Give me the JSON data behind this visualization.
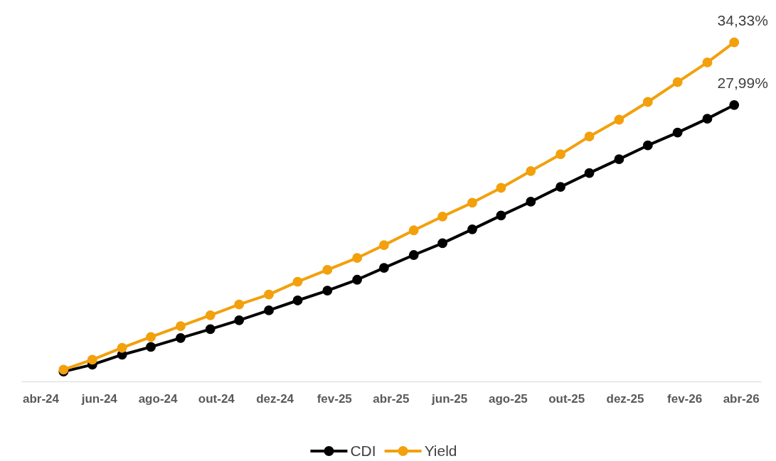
{
  "chart_data": {
    "type": "line",
    "x": [
      "2024-04-25",
      "2024-05-25",
      "2024-06-25",
      "2024-07-25",
      "2024-08-25",
      "2024-09-25",
      "2024-10-25",
      "2024-11-25",
      "2024-12-25",
      "2025-01-25",
      "2025-02-25",
      "2025-03-25",
      "2025-04-25",
      "2025-05-25",
      "2025-06-25",
      "2025-07-25",
      "2025-08-25",
      "2025-09-25",
      "2025-10-25",
      "2025-11-25",
      "2025-12-25",
      "2026-01-25",
      "2026-02-25",
      "2026-03-25"
    ],
    "xlim": [
      "2024-03-12",
      "2026-04-22"
    ],
    "xticks": [
      {
        "value": "2024-04-01",
        "label": "abr-24"
      },
      {
        "value": "2024-06-01",
        "label": "jun-24"
      },
      {
        "value": "2024-08-01",
        "label": "ago-24"
      },
      {
        "value": "2024-10-01",
        "label": "out-24"
      },
      {
        "value": "2024-12-01",
        "label": "dez-24"
      },
      {
        "value": "2025-02-01",
        "label": "fev-25"
      },
      {
        "value": "2025-04-01",
        "label": "abr-25"
      },
      {
        "value": "2025-06-01",
        "label": "jun-25"
      },
      {
        "value": "2025-08-01",
        "label": "ago-25"
      },
      {
        "value": "2025-10-01",
        "label": "out-25"
      },
      {
        "value": "2025-12-01",
        "label": "dez-25"
      },
      {
        "value": "2026-02-01",
        "label": "fev-26"
      },
      {
        "value": "2026-04-01",
        "label": "abr-26"
      }
    ],
    "tick_labels": "x",
    "series": [
      {
        "name": "CDI",
        "color": "#000000",
        "values": [
          1.0,
          1.7,
          2.7,
          3.5,
          4.4,
          5.3,
          6.2,
          7.2,
          8.2,
          9.2,
          10.3,
          11.5,
          12.8,
          14.0,
          15.4,
          16.8,
          18.2,
          19.7,
          21.1,
          22.5,
          23.9,
          25.2,
          26.6,
          27.99
        ],
        "value_labels": [
          null,
          null,
          null,
          null,
          null,
          null,
          null,
          null,
          null,
          null,
          null,
          null,
          null,
          null,
          null,
          null,
          null,
          null,
          null,
          null,
          null,
          null,
          null,
          "27,99%"
        ]
      },
      {
        "name": "Yield",
        "color": "#f2a00c",
        "values": [
          1.2,
          2.2,
          3.4,
          4.5,
          5.6,
          6.7,
          7.8,
          8.8,
          10.1,
          11.3,
          12.5,
          13.8,
          15.3,
          16.7,
          18.1,
          19.6,
          21.3,
          23.0,
          24.8,
          26.5,
          28.3,
          30.3,
          32.3,
          34.33
        ],
        "value_labels": [
          null,
          null,
          null,
          null,
          null,
          null,
          null,
          null,
          null,
          null,
          null,
          null,
          null,
          null,
          null,
          null,
          null,
          null,
          null,
          null,
          null,
          null,
          null,
          "34,33%"
        ]
      }
    ],
    "marker": "circle",
    "line_style": "solid",
    "legend": "bottom"
  }
}
